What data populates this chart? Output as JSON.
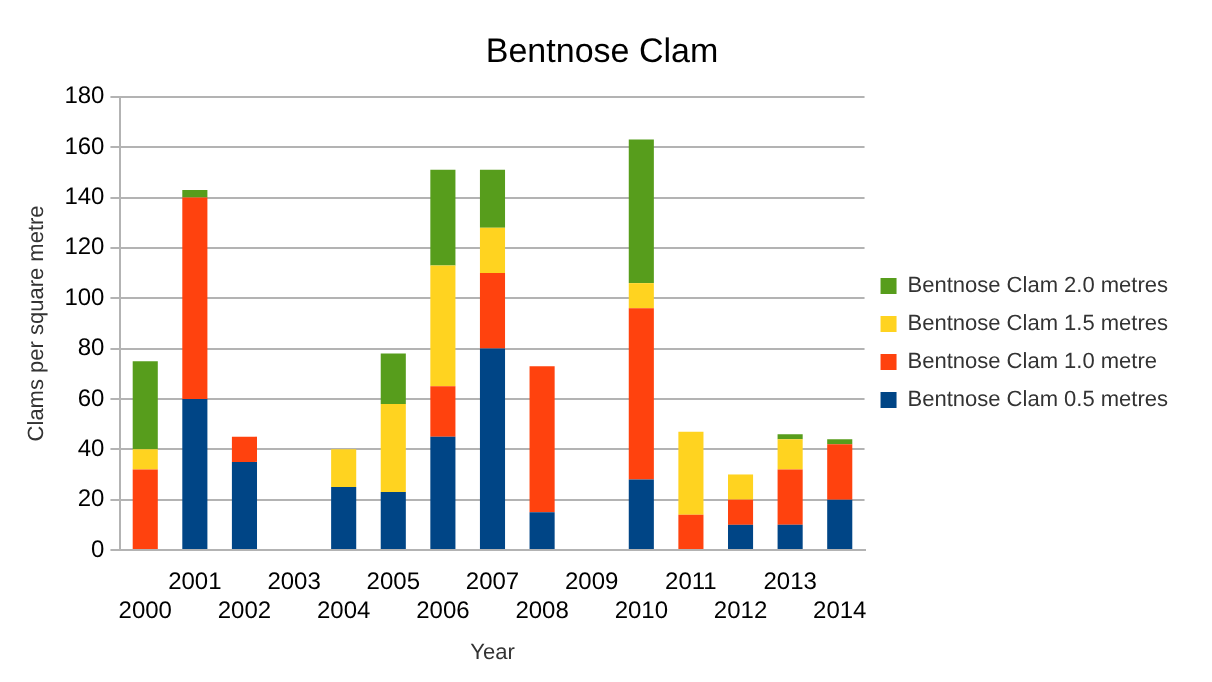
{
  "chart_data": {
    "type": "bar",
    "title": "Bentnose Clam",
    "xlabel": "Year",
    "ylabel": "Clams per square metre",
    "categories": [
      "2000",
      "2001",
      "2002",
      "2003",
      "2004",
      "2005",
      "2006",
      "2007",
      "2008",
      "2009",
      "2010",
      "2011",
      "2012",
      "2013",
      "2014"
    ],
    "stacked": true,
    "ylim": [
      0,
      180
    ],
    "yticks": [
      0,
      20,
      40,
      60,
      80,
      100,
      120,
      140,
      160,
      180
    ],
    "grid": "y",
    "legend": "right",
    "series": [
      {
        "name": "Bentnose Clam 0.5 metres",
        "color": "#004586",
        "values": [
          null,
          60,
          35,
          null,
          25,
          23,
          45,
          80,
          15,
          null,
          28,
          null,
          10,
          10,
          20
        ]
      },
      {
        "name": "Bentnose Clam 1.0 metre",
        "color": "#ff420e",
        "values": [
          32,
          80,
          10,
          null,
          null,
          null,
          20,
          30,
          58,
          null,
          68,
          14,
          10,
          22,
          22
        ]
      },
      {
        "name": "Bentnose Clam 1.5 metres",
        "color": "#ffd320",
        "values": [
          8,
          null,
          null,
          null,
          15,
          35,
          48,
          18,
          null,
          null,
          10,
          33,
          10,
          12,
          null
        ]
      },
      {
        "name": "Bentnose Clam 2.0 metres",
        "color": "#579d1c",
        "values": [
          35,
          3,
          null,
          null,
          null,
          20,
          38,
          23,
          null,
          null,
          57,
          null,
          null,
          2,
          2
        ]
      }
    ]
  }
}
